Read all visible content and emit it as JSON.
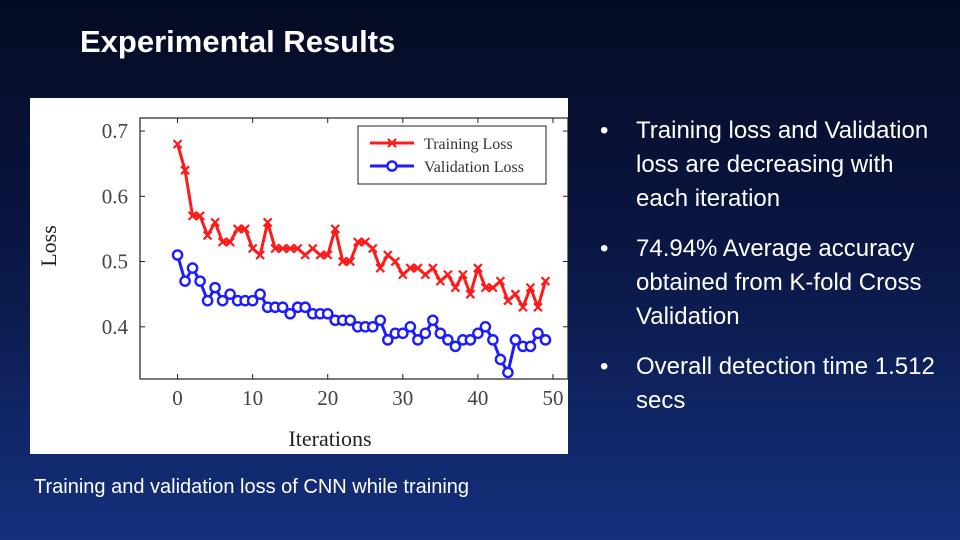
{
  "slide": {
    "title": "Experimental Results",
    "caption": "Training and validation loss of CNN while training",
    "bullet_glyph": "•",
    "bullets": [
      "Training loss and Validation loss are decreasing with each iteration",
      "74.94% Average accuracy obtained from K-fold Cross Validation",
      "Overall detection time 1.512 secs"
    ]
  },
  "chart_data": {
    "type": "line",
    "xlabel": "Iterations",
    "ylabel": "Loss",
    "xlim": [
      -5,
      52
    ],
    "ylim": [
      0.32,
      0.72
    ],
    "xticks": [
      0,
      10,
      20,
      30,
      40,
      50
    ],
    "yticks": [
      0.4,
      0.5,
      0.6,
      0.7
    ],
    "grid": false,
    "legend": "top-right",
    "x": [
      0,
      1,
      2,
      3,
      4,
      5,
      6,
      7,
      8,
      9,
      10,
      11,
      12,
      13,
      14,
      15,
      16,
      17,
      18,
      19,
      20,
      21,
      22,
      23,
      24,
      25,
      26,
      27,
      28,
      29,
      30,
      31,
      32,
      33,
      34,
      35,
      36,
      37,
      38,
      39,
      40,
      41,
      42,
      43,
      44,
      45,
      46,
      47,
      48,
      49
    ],
    "series": [
      {
        "name": "Training Loss",
        "color": "#ff1a1a",
        "marker": "x",
        "values": [
          0.68,
          0.64,
          0.57,
          0.57,
          0.54,
          0.56,
          0.53,
          0.53,
          0.55,
          0.55,
          0.52,
          0.51,
          0.56,
          0.52,
          0.52,
          0.52,
          0.52,
          0.51,
          0.52,
          0.51,
          0.51,
          0.55,
          0.5,
          0.5,
          0.53,
          0.53,
          0.52,
          0.49,
          0.51,
          0.5,
          0.48,
          0.49,
          0.49,
          0.48,
          0.49,
          0.47,
          0.48,
          0.46,
          0.48,
          0.45,
          0.49,
          0.46,
          0.46,
          0.47,
          0.44,
          0.45,
          0.43,
          0.46,
          0.43,
          0.47
        ]
      },
      {
        "name": "Validation Loss",
        "color": "#1c1cff",
        "marker": "o",
        "values": [
          0.51,
          0.47,
          0.49,
          0.47,
          0.44,
          0.46,
          0.44,
          0.45,
          0.44,
          0.44,
          0.44,
          0.45,
          0.43,
          0.43,
          0.43,
          0.42,
          0.43,
          0.43,
          0.42,
          0.42,
          0.42,
          0.41,
          0.41,
          0.41,
          0.4,
          0.4,
          0.4,
          0.41,
          0.38,
          0.39,
          0.39,
          0.4,
          0.38,
          0.39,
          0.41,
          0.39,
          0.38,
          0.37,
          0.38,
          0.38,
          0.39,
          0.4,
          0.38,
          0.35,
          0.33,
          0.38,
          0.37,
          0.37,
          0.39,
          0.38
        ]
      }
    ]
  }
}
